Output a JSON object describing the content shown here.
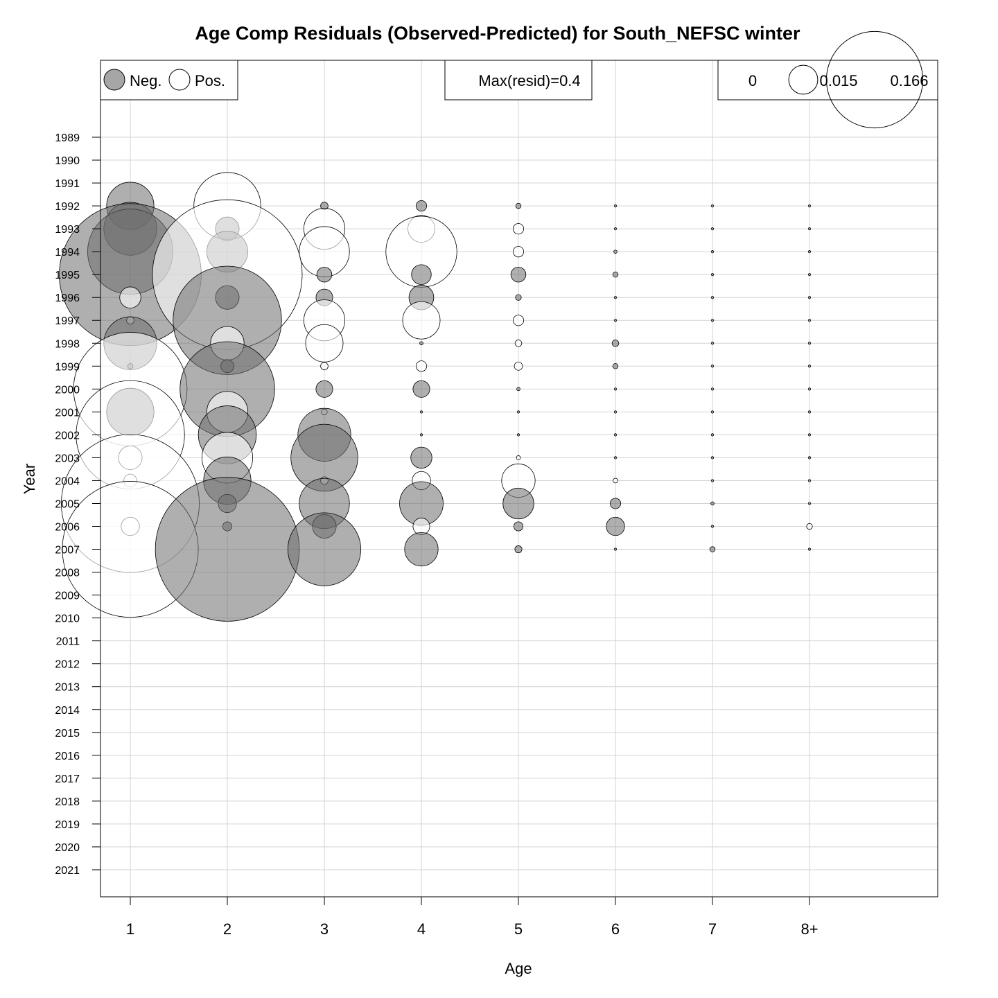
{
  "chart_data": {
    "type": "bubble",
    "title": "Age Comp Residuals (Observed-Predicted) for South_NEFSC winter",
    "xlabel": "Age",
    "ylabel": "Year",
    "x_categories": [
      "1",
      "2",
      "3",
      "4",
      "5",
      "6",
      "7",
      "8+"
    ],
    "years": [
      "1989",
      "1990",
      "1991",
      "1992",
      "1993",
      "1994",
      "1995",
      "1996",
      "1997",
      "1998",
      "1999",
      "2000",
      "2001",
      "2002",
      "2003",
      "2004",
      "2005",
      "2006",
      "2007",
      "2008",
      "2009",
      "2010",
      "2011",
      "2012",
      "2013",
      "2014",
      "2015",
      "2016",
      "2017",
      "2018",
      "2019",
      "2020",
      "2021"
    ],
    "grid": true,
    "colors": {
      "negative": "#a6a6a6",
      "positive": "#ffffff",
      "outline": "#000000"
    },
    "legend_sign": {
      "neg_label": "Neg.",
      "pos_label": "Pos."
    },
    "legend_max": "Max(resid)=0.4",
    "legend_size": {
      "labels": [
        "0",
        "0.015",
        "0.166"
      ],
      "values": [
        0,
        0.015,
        0.166
      ]
    },
    "note": "",
    "residuals": [
      {
        "year": "1992",
        "values": [
          -0.04,
          0.08,
          -0.001,
          -0.002,
          -0.0005,
          -0.0001,
          -0.0001,
          -0.0001
        ]
      },
      {
        "year": "1993",
        "values": [
          -0.05,
          -0.01,
          0.03,
          0.013,
          0.002,
          -0.0001,
          -0.0001,
          -0.0001
        ]
      },
      {
        "year": "1994",
        "values": [
          -0.13,
          -0.03,
          0.045,
          0.09,
          0.002,
          -0.0002,
          -0.0001,
          -0.0001
        ]
      },
      {
        "year": "1995",
        "values": [
          -0.36,
          0.4,
          -0.004,
          -0.007,
          -0.004,
          -0.0005,
          -0.0001,
          -0.0001
        ]
      },
      {
        "year": "1996",
        "values": [
          0.008,
          -0.01,
          -0.005,
          -0.011,
          -0.0006,
          -0.0001,
          -0.0001,
          -0.0001
        ]
      },
      {
        "year": "1997",
        "values": [
          0.001,
          -0.21,
          0.03,
          0.025,
          0.002,
          -0.0001,
          -0.0001,
          -0.0001
        ]
      },
      {
        "year": "1998",
        "values": [
          -0.05,
          0.02,
          0.025,
          -0.0002,
          0.0008,
          -0.0008,
          -0.0001,
          -0.0001
        ]
      },
      {
        "year": "1999",
        "values": [
          -0.0005,
          -0.003,
          0.001,
          0.002,
          0.0012,
          -0.0005,
          -0.0001,
          -0.0001
        ]
      },
      {
        "year": "2000",
        "values": [
          0.23,
          -0.16,
          -0.005,
          -0.005,
          -0.0002,
          -0.0001,
          -0.0001,
          -0.0001
        ]
      },
      {
        "year": "2001",
        "values": [
          -0.04,
          0.03,
          0.0006,
          -0.0001,
          -0.0001,
          -0.0001,
          -0.0001,
          -0.0001
        ]
      },
      {
        "year": "2002",
        "values": [
          0.21,
          -0.06,
          -0.05,
          -0.0001,
          -0.0001,
          -0.0001,
          -0.0001,
          -0.0001
        ]
      },
      {
        "year": "2003",
        "values": [
          0.01,
          0.046,
          -0.08,
          -0.008,
          0.0003,
          -0.0001,
          -0.0001,
          -0.0001
        ]
      },
      {
        "year": "2004",
        "values": [
          0.003,
          -0.04,
          0.001,
          0.006,
          0.02,
          0.0004,
          -0.0001,
          -0.0001
        ]
      },
      {
        "year": "2005",
        "values": [
          0.34,
          -0.006,
          -0.045,
          -0.034,
          -0.017,
          -0.002,
          -0.0002,
          -0.0001
        ]
      },
      {
        "year": "2006",
        "values": [
          0.006,
          -0.0015,
          -0.01,
          0.005,
          -0.0015,
          -0.006,
          -0.0001,
          0.0006
        ]
      },
      {
        "year": "2007",
        "values": [
          0.33,
          -0.37,
          -0.095,
          -0.02,
          -0.0009,
          -0.0001,
          -0.0005,
          -0.0001
        ]
      }
    ]
  }
}
